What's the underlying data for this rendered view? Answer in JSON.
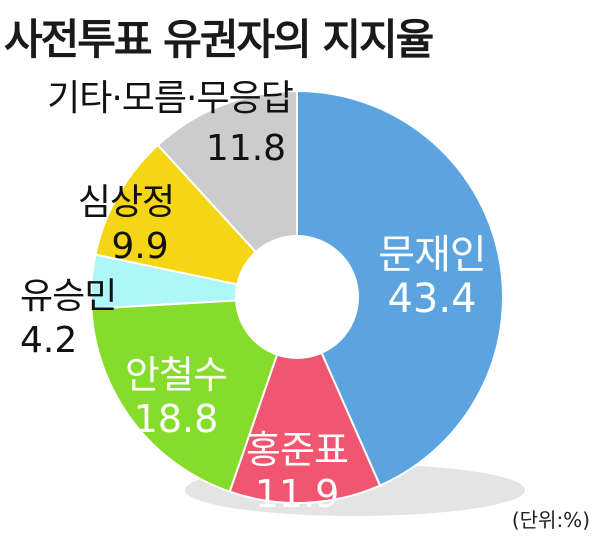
{
  "title": "사전투표 유권자의 지지율",
  "unit_label": "(단위:%)",
  "chart_data": {
    "type": "pie",
    "donut": true,
    "title": "사전투표 유권자의 지지율",
    "unit": "%",
    "slices": [
      {
        "label": "문재인",
        "value": 43.4,
        "color": "#5ba4e0",
        "label_color": "#ffffff"
      },
      {
        "label": "홍준표",
        "value": 11.9,
        "color": "#f0566f",
        "label_color": "#ffffff"
      },
      {
        "label": "안철수",
        "value": 18.8,
        "color": "#86dc2a",
        "label_color": "#ffffff"
      },
      {
        "label": "유승민",
        "value": 4.2,
        "color": "#aef6f8",
        "label_color": "#111111"
      },
      {
        "label": "심상정",
        "value": 9.9,
        "color": "#f4d615",
        "label_color": "#111111"
      },
      {
        "label": "기타·모름·무응답",
        "value": 11.8,
        "color": "#cccccc",
        "label_color": "#111111"
      }
    ]
  }
}
